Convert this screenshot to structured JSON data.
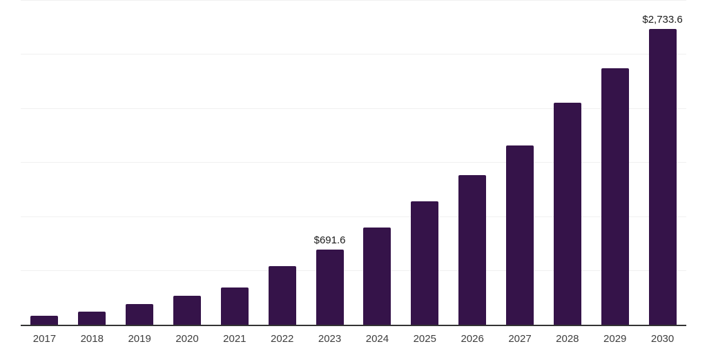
{
  "chart_data": {
    "type": "bar",
    "title": "",
    "xlabel": "",
    "ylabel": "",
    "categories": [
      "2017",
      "2018",
      "2019",
      "2020",
      "2021",
      "2022",
      "2023",
      "2024",
      "2025",
      "2026",
      "2027",
      "2028",
      "2029",
      "2030"
    ],
    "values": [
      85,
      121,
      190,
      270,
      343,
      540,
      691.6,
      900,
      1143,
      1380,
      1653,
      2053,
      2368,
      2733.6
    ],
    "point_labels": [
      {
        "index": 6,
        "text": "$691.6"
      },
      {
        "index": 13,
        "text": "$2,733.6"
      }
    ],
    "ylim": [
      0,
      3000
    ],
    "gridline_step": 500,
    "grid": true,
    "legend": false,
    "colors": {
      "bar": "#351349",
      "gridline": "#f0f0f0",
      "axis": "#333333",
      "tick_label": "#3d3d3d",
      "value_label": "#1a1a1a",
      "background": "#ffffff"
    }
  }
}
